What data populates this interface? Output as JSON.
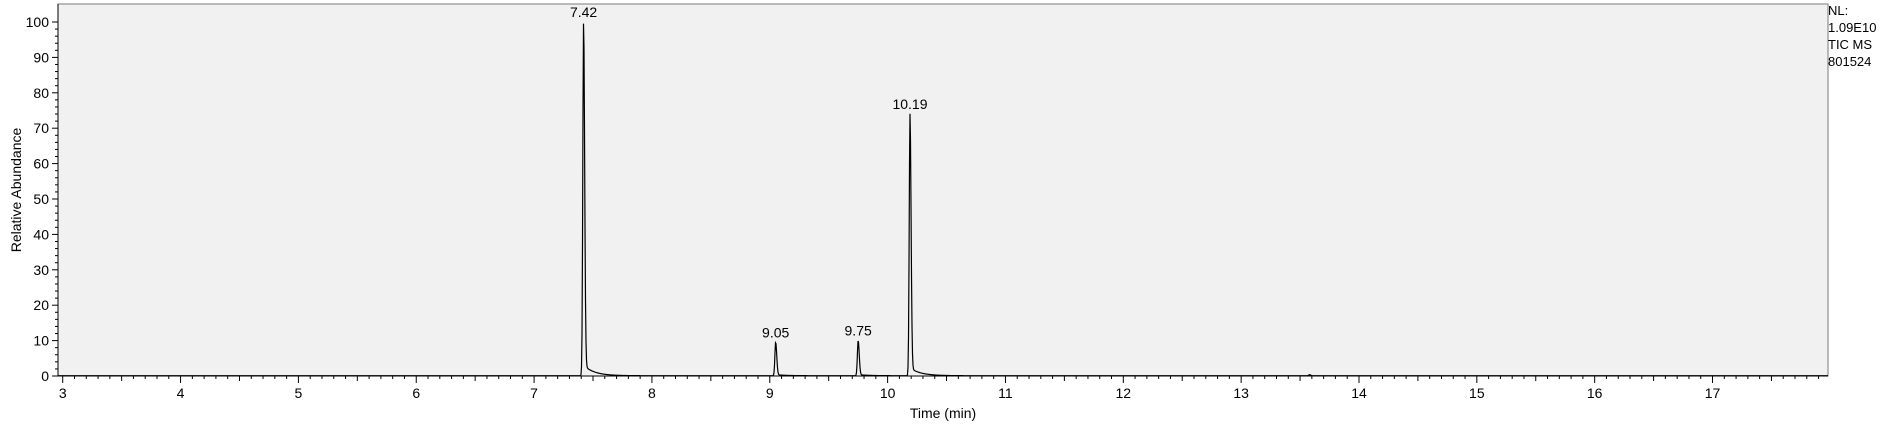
{
  "info_panel": {
    "nl_label": "NL:",
    "nl_value": "1.09E10",
    "trace": "TIC  MS",
    "sample": "801524"
  },
  "chart_data": {
    "type": "line",
    "title": "",
    "xlabel": "Time (min)",
    "ylabel": "Relative Abundance",
    "xlim": [
      2.96,
      17.98
    ],
    "ylim": [
      0,
      100
    ],
    "xticks": [
      3,
      4,
      5,
      6,
      7,
      8,
      9,
      10,
      11,
      12,
      13,
      14,
      15,
      16,
      17
    ],
    "yticks": [
      0,
      10,
      20,
      30,
      40,
      50,
      60,
      70,
      80,
      90,
      100
    ],
    "grid": false,
    "background_color": "#f1f1f1",
    "line_color": "#000000",
    "peaks": [
      {
        "rt": 7.42,
        "label": "7.42",
        "height": 100
      },
      {
        "rt": 9.05,
        "label": "9.05",
        "height": 9.5
      },
      {
        "rt": 9.75,
        "label": "9.75",
        "height": 10
      },
      {
        "rt": 10.19,
        "label": "10.19",
        "height": 74
      }
    ],
    "minor_peaks": [
      {
        "rt": 13.58,
        "height": 0.3
      }
    ]
  }
}
